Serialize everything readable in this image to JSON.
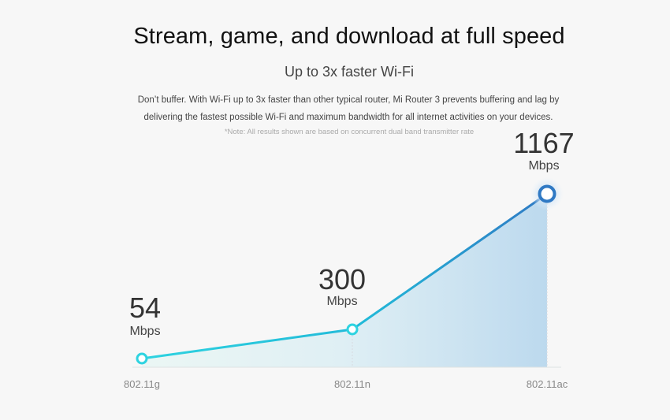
{
  "hero": {
    "headline": "Stream, game, and download at full speed",
    "subheadline": "Up to 3x faster Wi-Fi",
    "description_line1": "Don’t buffer. With Wi-Fi up to 3x faster than other typical router, Mi Router 3 prevents buffering and lag by",
    "description_line2": "delivering the fastest possible Wi-Fi and maximum bandwidth for all internet activities on your devices.",
    "note": "*Note: All results shown are based on concurrent dual band transmitter rate"
  },
  "chart_data": {
    "type": "line",
    "categories": [
      "802.11g",
      "802.11n",
      "802.11ac"
    ],
    "values": [
      54,
      300,
      1167
    ],
    "unit": "Mbps",
    "ylim": [
      0,
      1300
    ],
    "grid": false,
    "legend": "none",
    "colors": {
      "line_start": "#2ed3e0",
      "line_end": "#2f79c4",
      "fill": "#bcd9ee",
      "marker_last": "#2f79c4"
    }
  }
}
